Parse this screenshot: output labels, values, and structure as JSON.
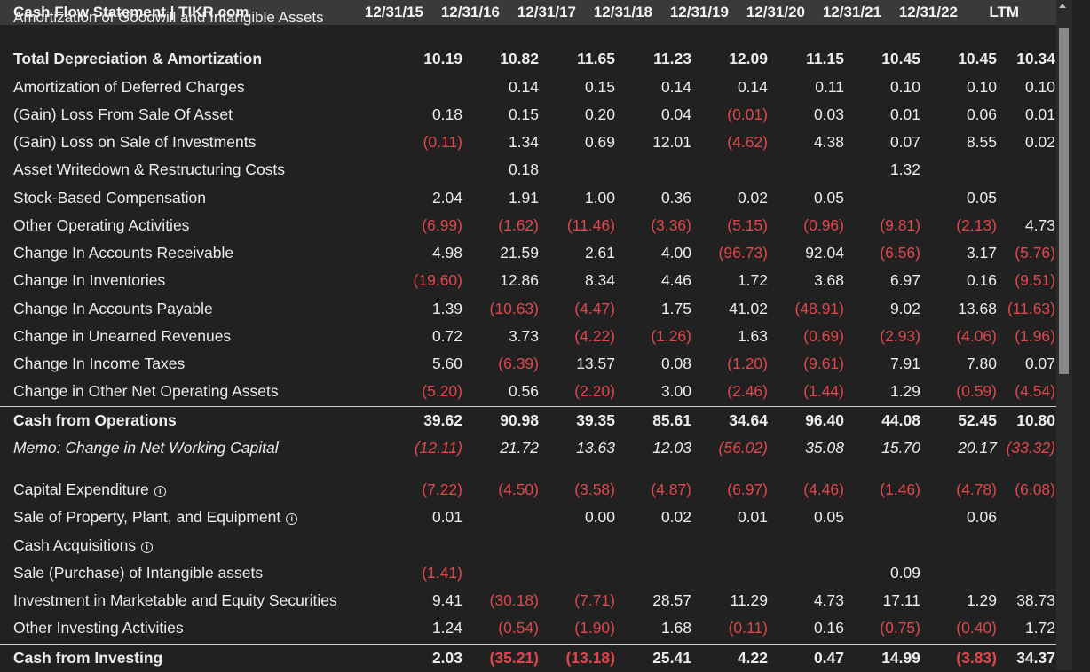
{
  "header": {
    "title": "Cash Flow Statement | TIKR.com",
    "columns": [
      "12/31/15",
      "12/31/16",
      "12/31/17",
      "12/31/18",
      "12/31/19",
      "12/31/20",
      "12/31/21",
      "12/31/22",
      "LTM"
    ]
  },
  "rows": [
    {
      "label": "Amortization of Goodwill and Intangible Assets",
      "values": [
        "",
        "",
        "",
        "",
        "",
        "",
        "",
        "",
        ""
      ],
      "style": "clipped"
    },
    {
      "label": "Total Depreciation & Amortization",
      "values": [
        "10.19",
        "10.82",
        "11.65",
        "11.23",
        "12.09",
        "11.15",
        "10.45",
        "10.45",
        "10.34"
      ],
      "style": "bold"
    },
    {
      "label": "Amortization of Deferred Charges",
      "values": [
        "",
        "0.14",
        "0.15",
        "0.14",
        "0.14",
        "0.11",
        "0.10",
        "0.10",
        "0.10"
      ]
    },
    {
      "label": "(Gain) Loss From Sale Of Asset",
      "values": [
        "0.18",
        "0.15",
        "0.20",
        "0.04",
        "(0.01)",
        "0.03",
        "0.01",
        "0.06",
        "0.01"
      ]
    },
    {
      "label": "(Gain) Loss on Sale of Investments",
      "values": [
        "(0.11)",
        "1.34",
        "0.69",
        "12.01",
        "(4.62)",
        "4.38",
        "0.07",
        "8.55",
        "0.02"
      ]
    },
    {
      "label": "Asset Writedown & Restructuring Costs",
      "values": [
        "",
        "0.18",
        "",
        "",
        "",
        "",
        "1.32",
        "",
        ""
      ]
    },
    {
      "label": "Stock-Based Compensation",
      "values": [
        "2.04",
        "1.91",
        "1.00",
        "0.36",
        "0.02",
        "0.05",
        "",
        "0.05",
        ""
      ]
    },
    {
      "label": "Other Operating Activities",
      "values": [
        "(6.99)",
        "(1.62)",
        "(11.46)",
        "(3.36)",
        "(5.15)",
        "(0.96)",
        "(9.81)",
        "(2.13)",
        "4.73"
      ]
    },
    {
      "label": "Change In Accounts Receivable",
      "values": [
        "4.98",
        "21.59",
        "2.61",
        "4.00",
        "(96.73)",
        "92.04",
        "(6.56)",
        "3.17",
        "(5.76)"
      ]
    },
    {
      "label": "Change In Inventories",
      "values": [
        "(19.60)",
        "12.86",
        "8.34",
        "4.46",
        "1.72",
        "3.68",
        "6.97",
        "0.16",
        "(9.51)"
      ]
    },
    {
      "label": "Change In Accounts Payable",
      "values": [
        "1.39",
        "(10.63)",
        "(4.47)",
        "1.75",
        "41.02",
        "(48.91)",
        "9.02",
        "13.68",
        "(11.63)"
      ]
    },
    {
      "label": "Change in Unearned Revenues",
      "values": [
        "0.72",
        "3.73",
        "(4.22)",
        "(1.26)",
        "1.63",
        "(0.69)",
        "(2.93)",
        "(4.06)",
        "(1.96)"
      ]
    },
    {
      "label": "Change In Income Taxes",
      "values": [
        "5.60",
        "(6.39)",
        "13.57",
        "0.08",
        "(1.20)",
        "(9.61)",
        "7.91",
        "7.80",
        "0.07"
      ]
    },
    {
      "label": "Change in Other Net Operating Assets",
      "values": [
        "(5.20)",
        "0.56",
        "(2.20)",
        "3.00",
        "(2.46)",
        "(1.44)",
        "1.29",
        "(0.59)",
        "(4.54)"
      ]
    },
    {
      "label": "Cash from Operations",
      "values": [
        "39.62",
        "90.98",
        "39.35",
        "85.61",
        "34.64",
        "96.40",
        "44.08",
        "52.45",
        "10.80"
      ],
      "style": "bold sep"
    },
    {
      "label": "Memo: Change in Net Working Capital",
      "values": [
        "(12.11)",
        "21.72",
        "13.63",
        "12.03",
        "(56.02)",
        "35.08",
        "15.70",
        "20.17",
        "(33.32)"
      ],
      "style": "italic"
    },
    {
      "label": "",
      "values": [
        "",
        "",
        "",
        "",
        "",
        "",
        "",
        "",
        ""
      ],
      "style": "spacer"
    },
    {
      "label": "Capital Expenditure",
      "values": [
        "(7.22)",
        "(4.50)",
        "(3.58)",
        "(4.87)",
        "(6.97)",
        "(4.46)",
        "(1.46)",
        "(4.78)",
        "(6.08)"
      ],
      "info": true
    },
    {
      "label": "Sale of Property, Plant, and Equipment",
      "values": [
        "0.01",
        "",
        "0.00",
        "0.02",
        "0.01",
        "0.05",
        "",
        "0.06",
        ""
      ],
      "info": true
    },
    {
      "label": "Cash Acquisitions",
      "values": [
        "",
        "",
        "",
        "",
        "",
        "",
        "",
        "",
        ""
      ],
      "info": true
    },
    {
      "label": "Sale (Purchase) of Intangible assets",
      "values": [
        "(1.41)",
        "",
        "",
        "",
        "",
        "",
        "0.09",
        "",
        ""
      ]
    },
    {
      "label": "Investment in Marketable and Equity Securities",
      "values": [
        "9.41",
        "(30.18)",
        "(7.71)",
        "28.57",
        "11.29",
        "4.73",
        "17.11",
        "1.29",
        "38.73"
      ]
    },
    {
      "label": "Other Investing Activities",
      "values": [
        "1.24",
        "(0.54)",
        "(1.90)",
        "1.68",
        "(0.11)",
        "0.16",
        "(0.75)",
        "(0.40)",
        "1.72"
      ]
    },
    {
      "label": "Cash from Investing",
      "values": [
        "2.03",
        "(35.21)",
        "(13.18)",
        "25.41",
        "4.22",
        "0.47",
        "14.99",
        "(3.83)",
        "34.37"
      ],
      "style": "bold sep"
    }
  ],
  "colors": {
    "negative": "#e0474c",
    "background": "#212121",
    "header_bg": "#3a3a3a",
    "text": "#ececec"
  },
  "icons": {
    "info": "info-circle-icon",
    "scroll_up": "scroll-up-arrow-icon"
  }
}
